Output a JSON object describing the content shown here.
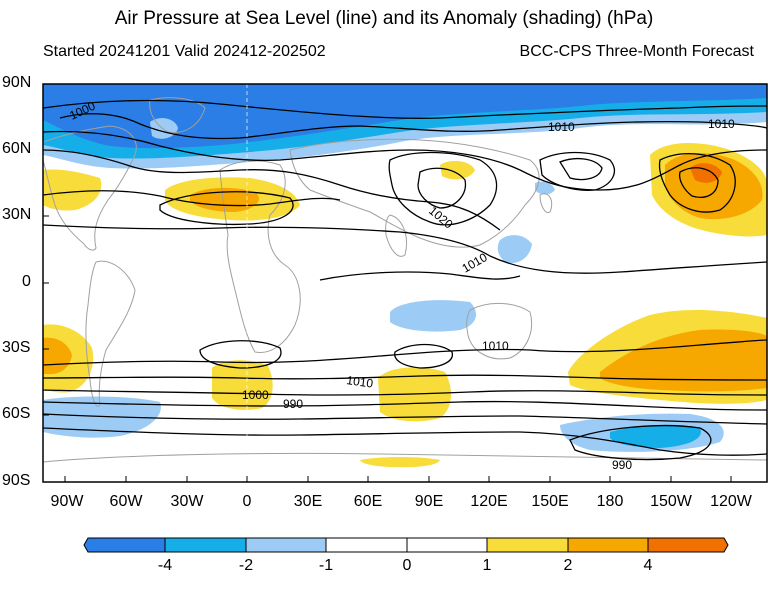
{
  "header": {
    "title": "Air Pressure at Sea Level (line) and its Anomaly (shading) (hPa)",
    "started": "Started 20241201  Valid 202412-202502",
    "forecast": "BCC-CPS Three-Month Forecast"
  },
  "axes": {
    "lat_ticks": [
      "90N",
      "60N",
      "30N",
      "0",
      "30S",
      "60S",
      "90S"
    ],
    "lon_ticks": [
      "90W",
      "60W",
      "30W",
      "0",
      "30E",
      "60E",
      "90E",
      "120E",
      "150E",
      "180",
      "150W",
      "120W"
    ]
  },
  "contour_labels": [
    "1000",
    "1010",
    "1010",
    "1020",
    "1010",
    "1010",
    "1010",
    "1000",
    "990",
    "990"
  ],
  "colorbar": {
    "labels": [
      "-4",
      "-2",
      "-1",
      "0",
      "1",
      "2",
      "4"
    ],
    "colors": [
      "#2a7ee6",
      "#16aee8",
      "#9cccf5",
      "#ffffff",
      "#ffffff",
      "#f8dc3a",
      "#f6a800",
      "#f07000"
    ]
  },
  "palette": {
    "strong_neg": "#2a7ee6",
    "mid_neg": "#16aee8",
    "weak_neg": "#9cccf5",
    "weak_pos": "#f8dc3a",
    "mid_pos": "#f6a800",
    "strong_pos": "#f07000",
    "coast": "#a0a0a0",
    "contour": "#000000"
  }
}
